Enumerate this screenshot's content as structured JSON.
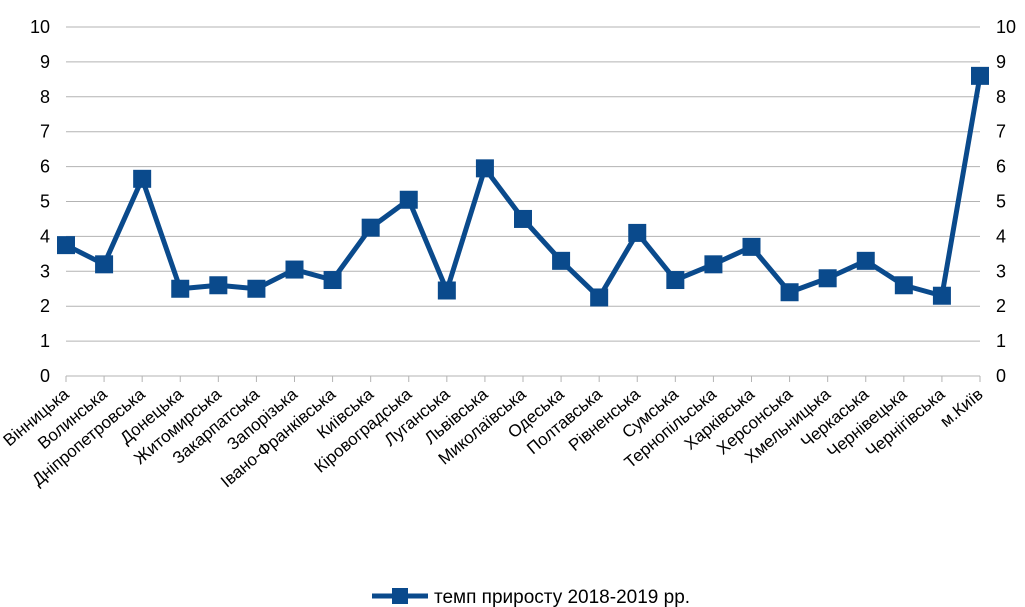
{
  "chart_data": {
    "type": "line",
    "categories": [
      "Вінницька",
      "Волинська",
      "Дніпропетровська",
      "Донецька",
      "Житомирська",
      "Закарпатська",
      "Запорізька",
      "Івано-Франківська",
      "Київська",
      "Кіровоградська",
      "Луганська",
      "Львівська",
      "Миколаївська",
      "Одеська",
      "Полтавська",
      "Рівненська",
      "Сумська",
      "Тернопільська",
      "Харківська",
      "Херсонська",
      "Хмельницька",
      "Черкаська",
      "Чернівецька",
      "Чернігівська",
      "м.Київ"
    ],
    "series": [
      {
        "name": "темп приросту 2018-2019 рр.",
        "color": "#0a4a8c",
        "marker": "square",
        "values": [
          3.75,
          3.2,
          5.65,
          2.5,
          2.6,
          2.5,
          3.05,
          2.75,
          4.25,
          5.05,
          2.45,
          5.95,
          4.5,
          3.3,
          2.25,
          4.1,
          2.75,
          3.2,
          3.7,
          2.4,
          2.8,
          3.3,
          2.6,
          2.3,
          8.6
        ]
      }
    ],
    "ylim": [
      0,
      10
    ],
    "yticks": [
      "0",
      "1",
      "2",
      "3",
      "4",
      "5",
      "6",
      "7",
      "8",
      "9",
      "10"
    ],
    "grid": true,
    "secondary_y_axis": true,
    "legend_position": "bottom-center"
  }
}
